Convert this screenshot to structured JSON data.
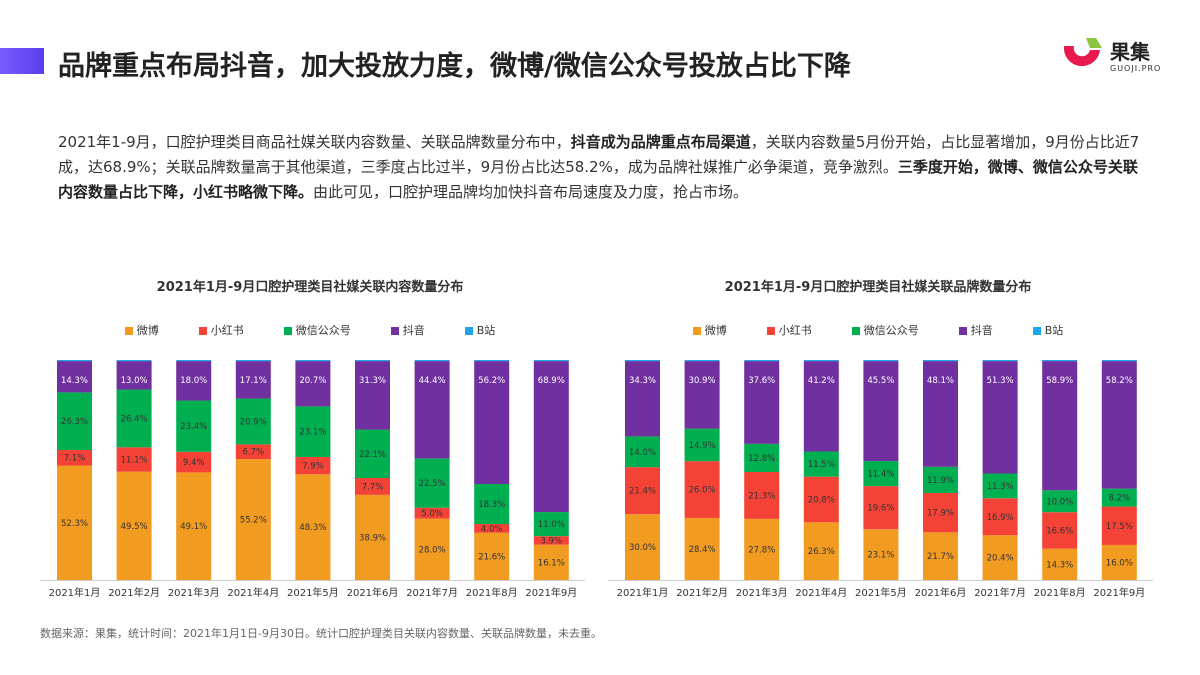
{
  "header": {
    "title": "品牌重点布局抖音，加大投放力度，微博/微信公众号投放占比下降",
    "logo_text": "果集",
    "logo_sub": "GUOJI.PRO"
  },
  "paragraph": [
    {
      "text": "2021年1-9月，口腔护理类目商品社媒关联内容数量、关联品牌数量分布中，",
      "bold": false
    },
    {
      "text": "抖音成为品牌重点布局渠道",
      "bold": true
    },
    {
      "text": "，关联内容数量5月份开始，占比显著增加，9月份占比近7成，达68.9%；关联品牌数量高于其他渠道，三季度占比过半，9月份占比达58.2%，成为品牌社媒推广必争渠道，竞争激烈。",
      "bold": false
    },
    {
      "text": "三季度开始，微博、微信公众号关联内容数量占比下降，小红书略微下降。",
      "bold": true
    },
    {
      "text": "由此可见，口腔护理品牌均加快抖音布局速度及力度，抢占市场。",
      "bold": false
    }
  ],
  "footer": "数据来源：果集，统计时间：2021年1月1日-9月30日。统计口腔护理类目关联内容数量、关联品牌数量，未去重。",
  "chart_data": [
    {
      "type": "bar",
      "stacked": true,
      "title": "2021年1月-9月口腔护理类目社媒关联内容数量分布",
      "categories": [
        "2021年1月",
        "2021年2月",
        "2021年3月",
        "2021年4月",
        "2021年5月",
        "2021年6月",
        "2021年7月",
        "2021年8月",
        "2021年9月"
      ],
      "legend_position": "top",
      "ylim": [
        0,
        100
      ],
      "series": [
        {
          "name": "微博",
          "color": "#f29b21",
          "values": [
            52.3,
            49.5,
            49.1,
            55.2,
            48.3,
            38.9,
            28.0,
            21.6,
            16.1
          ]
        },
        {
          "name": "小红书",
          "color": "#f44336",
          "values": [
            7.1,
            11.1,
            9.4,
            6.7,
            7.9,
            7.7,
            5.0,
            4.0,
            3.9
          ]
        },
        {
          "name": "微信公众号",
          "color": "#00b050",
          "values": [
            26.3,
            26.4,
            23.4,
            20.9,
            23.1,
            22.1,
            22.5,
            18.3,
            11.0
          ]
        },
        {
          "name": "抖音",
          "color": "#7030a0",
          "values": [
            14.3,
            13.0,
            18.0,
            17.1,
            20.7,
            31.3,
            44.4,
            56.2,
            68.9
          ]
        },
        {
          "name": "B站",
          "color": "#1ea7e8",
          "values": [
            0.5,
            0.5,
            0.5,
            0.5,
            0.5,
            0.5,
            0.5,
            0.5,
            0.5
          ]
        }
      ]
    },
    {
      "type": "bar",
      "stacked": true,
      "title": "2021年1月-9月口腔护理类目社媒关联品牌数量分布",
      "categories": [
        "2021年1月",
        "2021年2月",
        "2021年3月",
        "2021年4月",
        "2021年5月",
        "2021年6月",
        "2021年7月",
        "2021年8月",
        "2021年9月"
      ],
      "legend_position": "top",
      "ylim": [
        0,
        100
      ],
      "series": [
        {
          "name": "微博",
          "color": "#f29b21",
          "values": [
            30.0,
            28.4,
            27.8,
            26.3,
            23.1,
            21.7,
            20.4,
            14.3,
            16.0
          ]
        },
        {
          "name": "小红书",
          "color": "#f44336",
          "values": [
            21.4,
            26.0,
            21.3,
            20.8,
            19.6,
            17.9,
            16.9,
            16.6,
            17.5
          ]
        },
        {
          "name": "微信公众号",
          "color": "#00b050",
          "values": [
            14.0,
            14.9,
            12.8,
            11.5,
            11.4,
            11.9,
            11.3,
            10.0,
            8.2
          ]
        },
        {
          "name": "抖音",
          "color": "#7030a0",
          "values": [
            34.3,
            30.9,
            37.6,
            41.2,
            45.5,
            48.1,
            51.3,
            58.9,
            58.2
          ]
        },
        {
          "name": "B站",
          "color": "#1ea7e8",
          "values": [
            0.5,
            0.5,
            0.5,
            0.5,
            0.5,
            0.5,
            0.5,
            0.5,
            0.5
          ]
        }
      ]
    }
  ]
}
